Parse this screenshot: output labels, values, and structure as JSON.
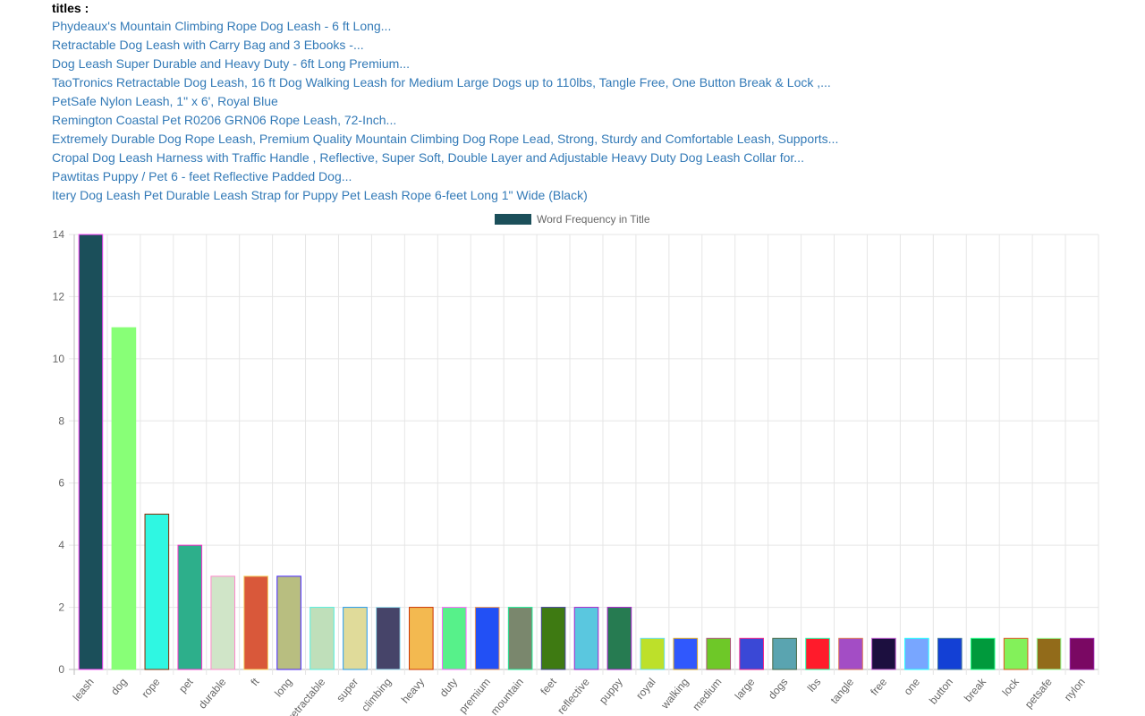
{
  "titles_header": "titles :",
  "titles": [
    "Phydeaux's Mountain Climbing Rope Dog Leash - 6 ft Long...",
    "Retractable Dog Leash with Carry Bag and 3 Ebooks -...",
    "Dog Leash Super Durable and Heavy Duty - 6ft Long Premium...",
    "TaoTronics Retractable Dog Leash, 16 ft Dog Walking Leash for Medium Large Dogs up to 110lbs, Tangle Free, One Button Break & Lock ,...",
    "PetSafe Nylon Leash, 1\" x 6', Royal Blue",
    "Remington Coastal Pet R0206 GRN06 Rope Leash, 72-Inch...",
    "Extremely Durable Dog Rope Leash, Premium Quality Mountain Climbing Dog Rope Lead, Strong, Sturdy and Comfortable Leash, Supports...",
    "Cropal Dog Leash Harness with Traffic Handle , Reflective, Super Soft, Double Layer and Adjustable Heavy Duty Dog Leash Collar for...",
    "Pawtitas Puppy / Pet 6 - feet Reflective Padded Dog...",
    "Itery Dog Leash Pet Durable Leash Strap for Puppy Pet Leash Rope 6-feet Long 1\" Wide (Black)"
  ],
  "chart_data": {
    "type": "bar",
    "legend": {
      "label": "Word Frequency in Title",
      "color": "#1b4f5a",
      "position": "top"
    },
    "categories": [
      "leash",
      "dog",
      "rope",
      "pet",
      "durable",
      "ft",
      "long",
      "retractable",
      "super",
      "climbing",
      "heavy",
      "duty",
      "premium",
      "mountain",
      "feet",
      "reflective",
      "puppy",
      "royal",
      "walking",
      "medium",
      "large",
      "dogs",
      "lbs",
      "tangle",
      "free",
      "one",
      "button",
      "break",
      "lock",
      "petsafe",
      "nylon"
    ],
    "values": [
      14,
      11,
      5,
      4,
      3,
      3,
      3,
      2,
      2,
      2,
      2,
      2,
      2,
      2,
      2,
      2,
      2,
      1,
      1,
      1,
      1,
      1,
      1,
      1,
      1,
      1,
      1,
      1,
      1,
      1,
      1
    ],
    "colors": [
      "#1b4f5a",
      "#88ff77",
      "#2ff7e2",
      "#2daf8b",
      "#d0e5c8",
      "#d9583a",
      "#b8be80",
      "#bfdfba",
      "#e0db9a",
      "#464469",
      "#f3b950",
      "#57f18a",
      "#2250f5",
      "#7a876d",
      "#3e7a12",
      "#5ac7df",
      "#267b51",
      "#bde02a",
      "#3058fd",
      "#6ec828",
      "#3a48d6",
      "#5aa4b0",
      "#ff1b2b",
      "#a34dc5",
      "#1c0f3f",
      "#78a6ff",
      "#1340d5",
      "#009a3c",
      "#83f15a",
      "#926b1a",
      "#7a0863"
    ],
    "border_colors": [
      "#ff44ff",
      "#88ff77",
      "#8a2a00",
      "#ff33cc",
      "#ff88cc",
      "#f5d060",
      "#4422ff",
      "#55eedd",
      "#2299ee",
      "#99ddee",
      "#cc3300",
      "#ff66ff",
      "#ee9955",
      "#22ee99",
      "#444499",
      "#aa22cc",
      "#aa22cc",
      "#66ddee",
      "#ddaa22",
      "#aa5577",
      "#ee2288",
      "#446644",
      "#22ffaa",
      "#dd7755",
      "#bb55cc",
      "#22ffff",
      "#447799",
      "#22ff88",
      "#dd5522",
      "#99ff99",
      "#9922aa"
    ],
    "ylim": [
      0,
      14
    ],
    "yticks": [
      0,
      2,
      4,
      6,
      8,
      10,
      12,
      14
    ],
    "grid": true
  }
}
